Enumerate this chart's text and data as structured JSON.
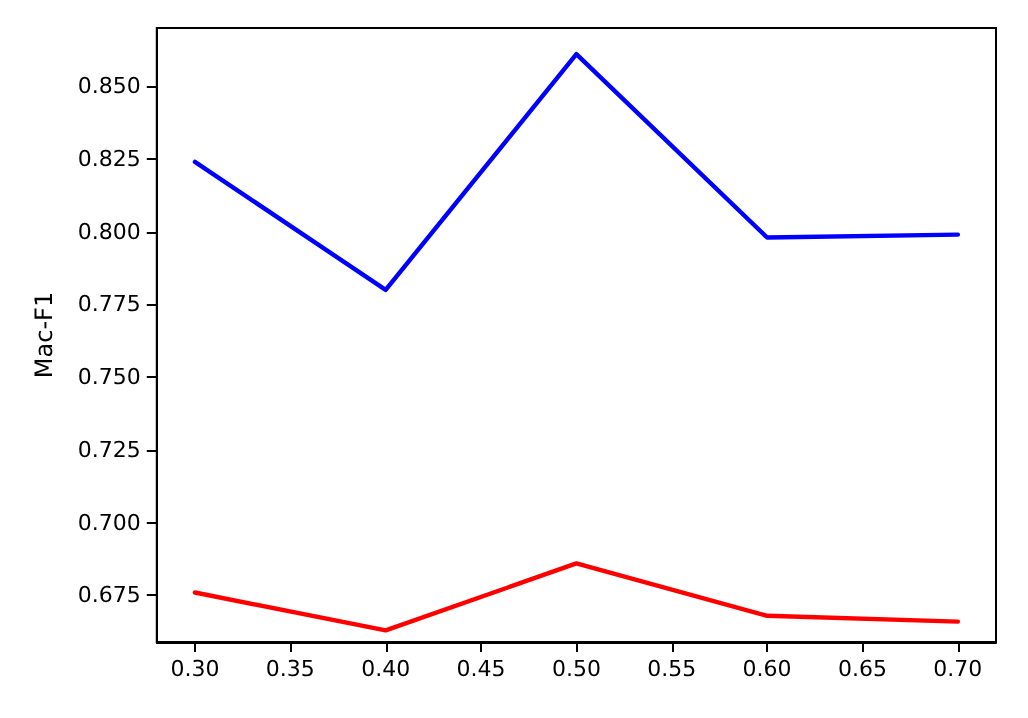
{
  "chart_data": {
    "type": "line",
    "ylabel": "Mac-F1",
    "x": [
      0.3,
      0.4,
      0.5,
      0.6,
      0.7
    ],
    "series": [
      {
        "color": "#0000ff",
        "values": [
          0.824,
          0.78,
          0.861,
          0.798,
          0.799
        ]
      },
      {
        "color": "#ff0000",
        "values": [
          0.676,
          0.663,
          0.686,
          0.668,
          0.666
        ]
      }
    ],
    "xlim": [
      0.28,
      0.72
    ],
    "xticks": [
      {
        "value": 0.3,
        "label": "0.30"
      },
      {
        "value": 0.35,
        "label": "0.35"
      },
      {
        "value": 0.4,
        "label": "0.40"
      },
      {
        "value": 0.45,
        "label": "0.45"
      },
      {
        "value": 0.5,
        "label": "0.50"
      },
      {
        "value": 0.55,
        "label": "0.55"
      },
      {
        "value": 0.6,
        "label": "0.60"
      },
      {
        "value": 0.65,
        "label": "0.65"
      },
      {
        "value": 0.7,
        "label": "0.70"
      }
    ],
    "ylim": [
      0.659,
      0.87
    ],
    "yticks": [
      {
        "value": 0.675,
        "label": "0.675"
      },
      {
        "value": 0.7,
        "label": "0.700"
      },
      {
        "value": 0.725,
        "label": "0.725"
      },
      {
        "value": 0.75,
        "label": "0.750"
      },
      {
        "value": 0.775,
        "label": "0.775"
      },
      {
        "value": 0.8,
        "label": "0.800"
      },
      {
        "value": 0.825,
        "label": "0.825"
      },
      {
        "value": 0.85,
        "label": "0.850"
      }
    ],
    "grid": false,
    "marker": "none",
    "line_style": "solid"
  }
}
